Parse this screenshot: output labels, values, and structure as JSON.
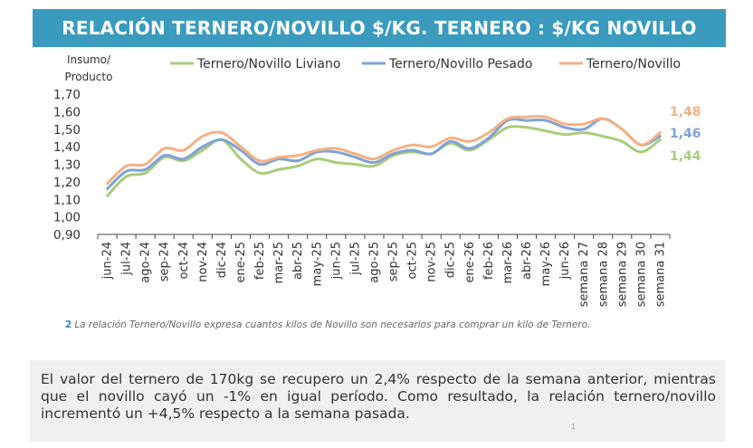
{
  "header": {
    "title": "RELACIÓN TERNERO/NOVILLO $/KG. TERNERO : $/KG NOVILLO"
  },
  "chart_data": {
    "type": "line",
    "ylabel": "Insumo/\nProducto",
    "ylim": [
      0.9,
      1.7
    ],
    "y_ticks": [
      "0,90",
      "1,00",
      "1,10",
      "1,20",
      "1,30",
      "1,40",
      "1,50",
      "1,60",
      "1,70"
    ],
    "categories": [
      "jun-24",
      "jul-24",
      "ago-24",
      "sep-24",
      "oct-24",
      "nov-24",
      "dic-24",
      "ene-25",
      "feb-25",
      "mar-25",
      "abr-25",
      "may-25",
      "jun-25",
      "jul-25",
      "ago-25",
      "sep-25",
      "oct-25",
      "nov-25",
      "dic-25",
      "ene-26",
      "feb-26",
      "mar-26",
      "abr-26",
      "may-26",
      "jun-26",
      "semana 27",
      "semana 28",
      "semana 29",
      "semana 30",
      "semana 31"
    ],
    "legend_position": "top",
    "series": [
      {
        "name": "Ternero/Novillo Liviano",
        "color": "#a9cc7a",
        "end_label": "1,44",
        "values": [
          1.12,
          1.23,
          1.25,
          1.34,
          1.32,
          1.38,
          1.44,
          1.33,
          1.25,
          1.27,
          1.29,
          1.33,
          1.31,
          1.3,
          1.29,
          1.35,
          1.37,
          1.36,
          1.42,
          1.38,
          1.44,
          1.51,
          1.51,
          1.49,
          1.47,
          1.48,
          1.46,
          1.43,
          1.37,
          1.44
        ]
      },
      {
        "name": "Ternero/Novillo Pesado",
        "color": "#7fa3d6",
        "end_label": "1,46",
        "values": [
          1.16,
          1.26,
          1.27,
          1.35,
          1.33,
          1.4,
          1.44,
          1.38,
          1.3,
          1.33,
          1.32,
          1.37,
          1.37,
          1.34,
          1.31,
          1.36,
          1.38,
          1.36,
          1.43,
          1.39,
          1.45,
          1.55,
          1.55,
          1.55,
          1.51,
          1.5,
          1.56,
          1.5,
          1.41,
          1.46
        ]
      },
      {
        "name": "Ternero/Novillo",
        "color": "#f4b183",
        "end_label": "1,48",
        "values": [
          1.19,
          1.29,
          1.3,
          1.39,
          1.38,
          1.46,
          1.48,
          1.4,
          1.32,
          1.34,
          1.35,
          1.38,
          1.39,
          1.36,
          1.33,
          1.38,
          1.41,
          1.4,
          1.45,
          1.43,
          1.48,
          1.56,
          1.57,
          1.57,
          1.53,
          1.53,
          1.56,
          1.5,
          1.41,
          1.48
        ]
      }
    ]
  },
  "footnote": {
    "number": "2",
    "text": "La relación Ternero/Novillo expresa cuantos kilos de Novillo son necesarios para comprar un kilo de Ternero."
  },
  "summary": {
    "text": "El valor del ternero de 170kg se recupero un 2,4% respecto de la semana anterior, mientras que el novillo cayó un -1% en igual período. Como resultado, la relación ternero/novillo incrementó un +4,5% respecto a la semana pasada."
  },
  "page": {
    "number": "1"
  }
}
